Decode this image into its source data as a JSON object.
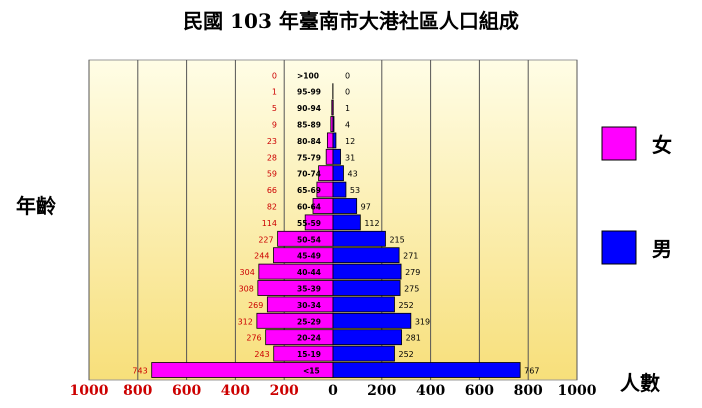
{
  "chart_data": {
    "type": "bar",
    "title": "民國 103 年臺南市大港社區人口組成",
    "ylabel": "年齡",
    "xlabel": "人數",
    "categories": [
      "<15",
      "15-19",
      "20-24",
      "25-29",
      "30-34",
      "35-39",
      "40-44",
      "45-49",
      "50-54",
      "55-59",
      "60-64",
      "65-69",
      "70-74",
      "75-79",
      "80-84",
      "85-89",
      "90-94",
      "95-99",
      ">100"
    ],
    "series": [
      {
        "name": "女",
        "color": "#ff00ff",
        "values": [
          743,
          243,
          276,
          312,
          269,
          308,
          304,
          244,
          227,
          114,
          82,
          66,
          59,
          28,
          23,
          9,
          5,
          1,
          0
        ]
      },
      {
        "name": "男",
        "color": "#0000ff",
        "values": [
          767,
          252,
          281,
          319,
          252,
          275,
          279,
          271,
          215,
          112,
          97,
          53,
          43,
          31,
          12,
          4,
          1,
          0,
          0
        ]
      }
    ],
    "x_tick_labels": [
      "1000",
      "800",
      "600",
      "400",
      "200",
      "0",
      "200",
      "400",
      "600",
      "800",
      "1000"
    ],
    "xlim": [
      -1000,
      1000
    ],
    "grid": true,
    "legend_position": "right"
  },
  "colors": {
    "female": "#ff00ff",
    "male": "#0000ff",
    "female_label": "#cc0000",
    "tick_label": "#cc0000",
    "plot_bg_top": "#fffde0",
    "plot_bg_bottom": "#f8e080"
  },
  "legend": {
    "female": "女",
    "male": "男"
  }
}
